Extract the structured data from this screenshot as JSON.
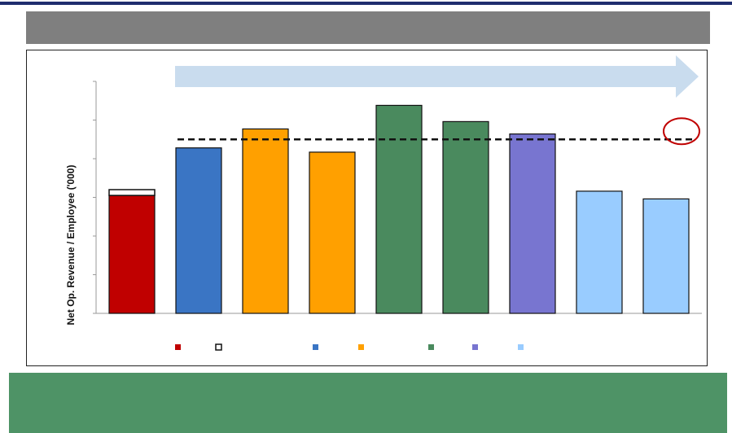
{
  "header": {
    "title": ""
  },
  "footer": {
    "text": ""
  },
  "colors": {
    "top_rule": "#1f2d6e",
    "title_bar": "#7f7f7f",
    "footer_band": "#4e9366",
    "arrow": "#c9dcee",
    "highlight_circle": "#c00000"
  },
  "chart_data": {
    "type": "bar",
    "title": "",
    "xlabel": "",
    "ylabel": "Net Op. Revenue / Employee ('000)",
    "ylim": [
      0,
      6
    ],
    "yticks": [
      0,
      1,
      2,
      3,
      4,
      5,
      6
    ],
    "grid": false,
    "categories": [
      "",
      "",
      "",
      "",
      "",
      "",
      "",
      "",
      ""
    ],
    "values": [
      3.05,
      4.28,
      4.77,
      4.17,
      5.38,
      4.96,
      4.64,
      3.16,
      2.96
    ],
    "colors": [
      "#c00000",
      "#3a75c4",
      "#ffa000",
      "#ffa000",
      "#4a8a5e",
      "#4a8a5e",
      "#7875d0",
      "#99ccff",
      "#99ccff"
    ],
    "stacked_extra": {
      "index": 0,
      "value": 0.15,
      "style": "outline"
    },
    "reference_line": {
      "value": 4.5,
      "style": "dashed"
    },
    "legend": {
      "placement": "bottom",
      "entries": [
        {
          "color": "#c00000",
          "label": ""
        },
        {
          "color": "#ffffff",
          "label": "",
          "outline": true
        },
        {
          "color": "#3a75c4",
          "label": ""
        },
        {
          "color": "#ffa000",
          "label": ""
        },
        {
          "color": "#4a8a5e",
          "label": ""
        },
        {
          "color": "#7875d0",
          "label": ""
        },
        {
          "color": "#99ccff",
          "label": ""
        }
      ]
    }
  }
}
